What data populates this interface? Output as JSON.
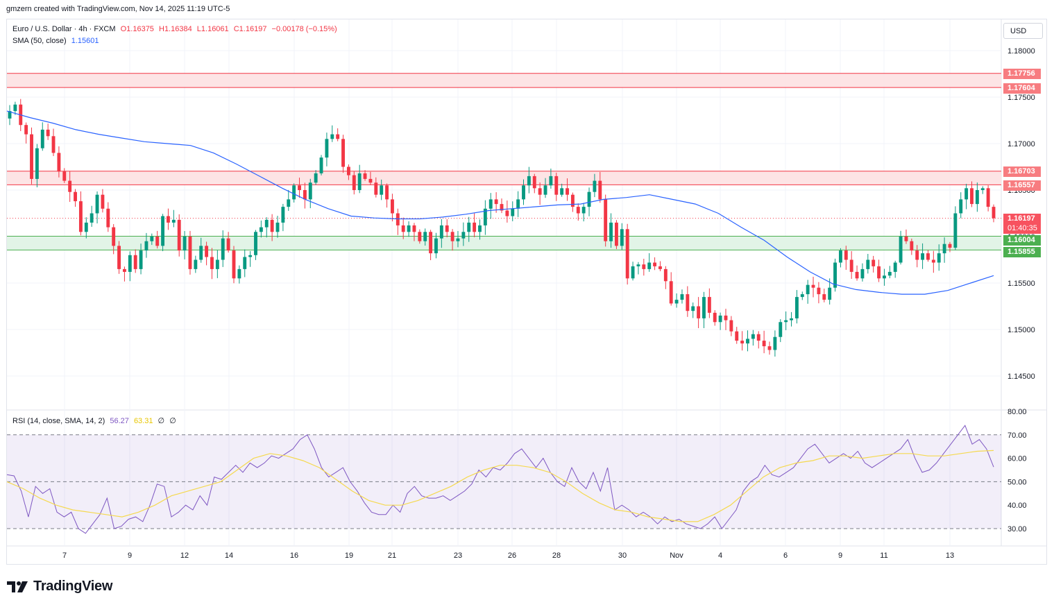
{
  "header": {
    "text": "gmzern created with TradingView.com, Nov 14, 2025 11:19 UTC-5"
  },
  "legend": {
    "symbol": "Euro / U.S. Dollar · 4h · FXCM",
    "open": "O1.16375",
    "high": "H1.16384",
    "low": "L1.16061",
    "close": "C1.16197",
    "change": "−0.00178 (−0.15%)",
    "sma_label": "SMA (50, close)",
    "sma_value": "1.15601"
  },
  "rsi_legend": {
    "label": "RSI (14, close, SMA, 14, 2)",
    "rsi_value": "56.27",
    "rsi_ma_value": "63.31",
    "ext1": "∅",
    "ext2": "∅"
  },
  "currency_button": "USD",
  "price_tags": {
    "upper_zone_top": "1.17756",
    "upper_zone_bottom": "1.17604",
    "mid_zone_top": "1.16703",
    "mid_zone_bottom": "1.16557",
    "last_price": "1.16197",
    "countdown": "01:40:35",
    "support_top": "1.16004",
    "support_bottom": "1.15855"
  },
  "logo_text": "TradingView",
  "colors": {
    "up": "#089981",
    "down": "#f23645",
    "sma": "#2962ff",
    "rsi": "#7e57c2",
    "rsi_ma": "#f5d94f",
    "resistance_fill": "#fde1e2",
    "support_fill": "#dff3e4"
  },
  "chart_data": [
    {
      "type": "candlestick",
      "title": "Euro / U.S. Dollar · 4h · FXCM",
      "y_ticks": [
        "1.18000",
        "1.17500",
        "1.17000",
        "1.16500",
        "1.16000",
        "1.15500",
        "1.15000",
        "1.14500"
      ],
      "y_range": [
        1.1415,
        1.1825
      ],
      "x_ticks": [
        "7",
        "9",
        "12",
        "14",
        "16",
        "19",
        "21",
        "23",
        "26",
        "28",
        "30",
        "Nov",
        "4",
        "6",
        "9",
        "11",
        "13"
      ],
      "zones": [
        {
          "kind": "resistance",
          "top": 1.17756,
          "bottom": 1.17604
        },
        {
          "kind": "resistance",
          "top": 1.16703,
          "bottom": 1.16557
        },
        {
          "kind": "support",
          "top": 1.16004,
          "bottom": 1.15855
        }
      ],
      "last_price": 1.16197,
      "close_path": [
        1.1735,
        1.1742,
        1.172,
        1.171,
        1.1662,
        1.1695,
        1.1715,
        1.1708,
        1.169,
        1.167,
        1.166,
        1.1648,
        1.1638,
        1.1605,
        1.1615,
        1.1625,
        1.1645,
        1.163,
        1.161,
        1.159,
        1.1565,
        1.1562,
        1.158,
        1.1565,
        1.1585,
        1.1595,
        1.16,
        1.159,
        1.1622,
        1.1615,
        1.1618,
        1.1585,
        1.16,
        1.1565,
        1.1575,
        1.159,
        1.1578,
        1.1565,
        1.1575,
        1.1598,
        1.1585,
        1.1555,
        1.1565,
        1.1578,
        1.158,
        1.1605,
        1.161,
        1.1618,
        1.1605,
        1.1615,
        1.1632,
        1.164,
        1.1655,
        1.165,
        1.164,
        1.1658,
        1.1668,
        1.1685,
        1.1705,
        1.171,
        1.1705,
        1.1675,
        1.1666,
        1.165,
        1.1668,
        1.1662,
        1.1658,
        1.1645,
        1.1655,
        1.164,
        1.1625,
        1.1612,
        1.1605,
        1.1612,
        1.1605,
        1.1595,
        1.1605,
        1.1582,
        1.1598,
        1.1612,
        1.1605,
        1.1595,
        1.1598,
        1.1605,
        1.1615,
        1.1605,
        1.1612,
        1.163,
        1.164,
        1.1635,
        1.1628,
        1.1622,
        1.163,
        1.164,
        1.1655,
        1.1665,
        1.1652,
        1.1645,
        1.1655,
        1.1665,
        1.1645,
        1.1652,
        1.1645,
        1.1632,
        1.1625,
        1.1632,
        1.1648,
        1.166,
        1.164,
        1.1595,
        1.1615,
        1.159,
        1.1608,
        1.1555,
        1.1568,
        1.157,
        1.1565,
        1.1572,
        1.1568,
        1.1565,
        1.1552,
        1.1528,
        1.1532,
        1.1538,
        1.152,
        1.1525,
        1.1512,
        1.1535,
        1.1518,
        1.1508,
        1.1515,
        1.151,
        1.1498,
        1.1488,
        1.1485,
        1.149,
        1.1495,
        1.1488,
        1.1482,
        1.1478,
        1.1492,
        1.1508,
        1.151,
        1.1512,
        1.1535,
        1.1538,
        1.1548,
        1.1545,
        1.1538,
        1.1532,
        1.1545,
        1.1572,
        1.1585,
        1.1575,
        1.1562,
        1.1555,
        1.1565,
        1.1575,
        1.1568,
        1.1555,
        1.1558,
        1.1562,
        1.1572,
        1.16,
        1.1595,
        1.1585,
        1.1575,
        1.1582,
        1.1575,
        1.1572,
        1.1582,
        1.1592,
        1.1588,
        1.1625,
        1.164,
        1.1652,
        1.1635,
        1.165,
        1.1652,
        1.1632,
        1.16197
      ],
      "sma_path": [
        1.1735,
        1.1728,
        1.1722,
        1.1715,
        1.171,
        1.1706,
        1.1702,
        1.17,
        1.1698,
        1.169,
        1.1678,
        1.1665,
        1.1652,
        1.164,
        1.163,
        1.1622,
        1.162,
        1.1619,
        1.1619,
        1.1621,
        1.1624,
        1.1628,
        1.163,
        1.1632,
        1.1634,
        1.1635,
        1.164,
        1.1642,
        1.1645,
        1.164,
        1.1635,
        1.1625,
        1.161,
        1.1596,
        1.1578,
        1.1562,
        1.1549,
        1.1543,
        1.154,
        1.1538,
        1.1538,
        1.1542,
        1.155,
        1.1558
      ],
      "series": [
        {
          "name": "SMA (50, close)"
        }
      ]
    },
    {
      "type": "line",
      "title": "RSI (14, close, SMA, 14, 2)",
      "y_ticks": [
        "80.00",
        "70.00",
        "60.00",
        "50.00",
        "40.00",
        "30.00"
      ],
      "y_range": [
        23,
        80
      ],
      "bands": {
        "upper": 70,
        "middle": 50,
        "lower": 30
      },
      "series": [
        {
          "values": [
            53,
            52.5,
            46,
            35,
            48,
            45,
            47,
            37,
            35,
            37,
            30,
            28,
            32,
            36,
            43,
            30,
            31,
            34,
            35,
            33,
            40,
            49,
            48,
            35,
            37,
            40,
            38,
            44,
            40,
            52,
            51,
            54,
            57,
            54,
            58,
            56,
            58,
            61,
            60,
            62,
            64,
            68,
            70,
            64,
            56,
            52,
            54,
            56,
            50,
            46,
            41,
            37,
            36,
            36,
            40,
            37,
            45,
            48,
            44,
            43,
            43,
            44,
            42,
            44,
            46,
            49,
            55,
            52,
            56,
            55,
            58,
            62,
            64,
            60,
            56,
            60,
            54,
            50,
            48,
            56,
            50,
            47,
            54,
            46,
            56,
            38,
            40,
            38,
            35,
            37,
            35,
            32,
            35,
            33,
            34,
            32,
            31,
            30,
            32,
            35,
            30,
            34,
            38,
            46,
            50,
            52,
            57,
            53,
            52,
            54,
            56,
            60,
            64,
            66,
            62,
            58,
            60,
            62,
            60,
            63,
            58,
            56,
            58,
            60,
            62,
            64,
            68,
            60,
            54,
            55,
            58,
            62,
            66,
            70,
            74,
            66,
            68,
            64,
            56.27
          ]
        },
        {
          "values": [
            50,
            47,
            43,
            40,
            38,
            37,
            36,
            35,
            37,
            40,
            44,
            46,
            48,
            50,
            55,
            60,
            62,
            61,
            59,
            56,
            51,
            46,
            42,
            40,
            40,
            42,
            45,
            48,
            52,
            55,
            57,
            57,
            56,
            54,
            50,
            45,
            41,
            38,
            37,
            35,
            34,
            33,
            33,
            36,
            40,
            46,
            52,
            56,
            58,
            59,
            61,
            61,
            60,
            61,
            62,
            62,
            61,
            61,
            62,
            63,
            63.31
          ]
        }
      ]
    }
  ]
}
